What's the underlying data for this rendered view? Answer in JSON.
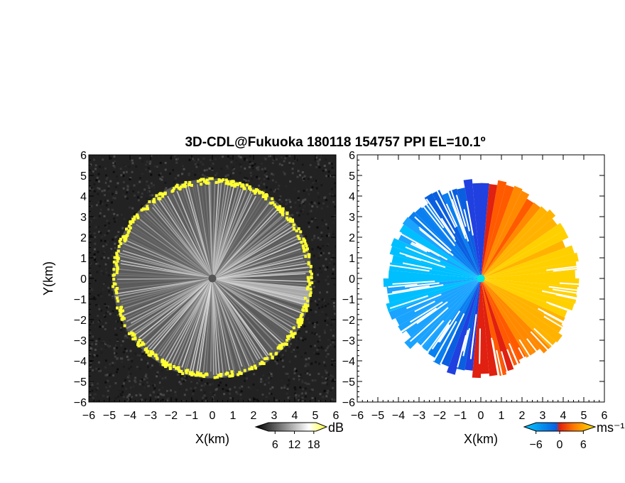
{
  "chart_data": [
    {
      "type": "heatmap",
      "title": "3D-CDL@Fukuoka 180118 154757 PPI EL=10.1º",
      "xlabel": "X(km)",
      "ylabel": "Y(km)",
      "xlim": [
        -6,
        6
      ],
      "ylim": [
        -6,
        6
      ],
      "xticks": [
        "-6",
        "-5",
        "-4",
        "-3",
        "-2",
        "-1",
        "0",
        "1",
        "2",
        "3",
        "4",
        "5",
        "6"
      ],
      "yticks": [
        "-6",
        "-5",
        "-4",
        "-3",
        "-2",
        "-1",
        "0",
        "1",
        "2",
        "3",
        "4",
        "5",
        "6"
      ],
      "colorbar": {
        "label": "dB",
        "ticks": [
          "6",
          "12",
          "18"
        ],
        "range": [
          0,
          22
        ],
        "colors": [
          "#000000",
          "#ffffff",
          "#ffff33"
        ]
      },
      "data_radius_km": 4.85,
      "center_marker_color": "#555555",
      "background_color": "#222222"
    },
    {
      "type": "heatmap",
      "xlabel": "X(km)",
      "xlim": [
        -6,
        6
      ],
      "ylim": [
        -6,
        6
      ],
      "xticks": [
        "-6",
        "-5",
        "-4",
        "-3",
        "-2",
        "-1",
        "0",
        "1",
        "2",
        "3",
        "4",
        "5",
        "6"
      ],
      "yticks": [
        "-6",
        "-5",
        "-4",
        "-3",
        "-2",
        "-1",
        "0",
        "1",
        "2",
        "3",
        "4",
        "5",
        "6"
      ],
      "colorbar": {
        "label": "ms⁻¹",
        "ticks": [
          "−6",
          "0",
          "6"
        ],
        "range": [
          -9,
          9
        ],
        "colors": [
          "#00bfff",
          "#0a6fe0",
          "#ff5a00",
          "#ffd000"
        ]
      },
      "data_radius_km": 4.85,
      "center_marker_color": "#00e5e5"
    }
  ]
}
